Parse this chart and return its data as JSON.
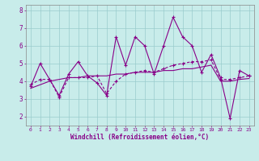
{
  "background_color": "#c8ecea",
  "line_color": "#880088",
  "grid_color": "#99cccc",
  "xlabel": "Windchill (Refroidissement éolien,°C)",
  "xlim": [
    -0.5,
    23.5
  ],
  "ylim": [
    1.5,
    8.3
  ],
  "xticks": [
    0,
    1,
    2,
    3,
    4,
    5,
    6,
    7,
    8,
    9,
    10,
    11,
    12,
    13,
    14,
    15,
    16,
    17,
    18,
    19,
    20,
    21,
    22,
    23
  ],
  "yticks": [
    2,
    3,
    4,
    5,
    6,
    7,
    8
  ],
  "series1_x": [
    0,
    1,
    2,
    3,
    4,
    5,
    6,
    7,
    8,
    9,
    10,
    11,
    12,
    13,
    14,
    15,
    16,
    17,
    18,
    19,
    20,
    21,
    22,
    23
  ],
  "series1_y": [
    3.7,
    5.0,
    4.1,
    3.2,
    4.4,
    5.1,
    4.3,
    3.9,
    3.2,
    6.5,
    4.9,
    6.5,
    6.0,
    4.4,
    6.0,
    7.6,
    6.5,
    6.0,
    4.5,
    5.5,
    4.2,
    1.9,
    4.6,
    4.3
  ],
  "series2_x": [
    0,
    1,
    2,
    3,
    4,
    5,
    6,
    7,
    8,
    9,
    10,
    11,
    12,
    13,
    14,
    15,
    16,
    17,
    18,
    19,
    20,
    21,
    22,
    23
  ],
  "series2_y": [
    3.8,
    4.1,
    4.1,
    3.1,
    4.2,
    4.2,
    4.2,
    4.3,
    3.3,
    4.0,
    4.4,
    4.5,
    4.6,
    4.5,
    4.7,
    4.9,
    5.0,
    5.1,
    5.1,
    5.2,
    4.1,
    4.1,
    4.2,
    4.3
  ],
  "series3_x": [
    0,
    1,
    2,
    3,
    4,
    5,
    6,
    7,
    8,
    9,
    10,
    11,
    12,
    13,
    14,
    15,
    16,
    17,
    18,
    19,
    20,
    21,
    22,
    23
  ],
  "series3_y": [
    3.6,
    3.8,
    4.0,
    4.1,
    4.2,
    4.2,
    4.3,
    4.3,
    4.3,
    4.4,
    4.4,
    4.5,
    4.5,
    4.5,
    4.6,
    4.6,
    4.7,
    4.7,
    4.8,
    4.9,
    4.0,
    4.0,
    4.1,
    4.15
  ]
}
